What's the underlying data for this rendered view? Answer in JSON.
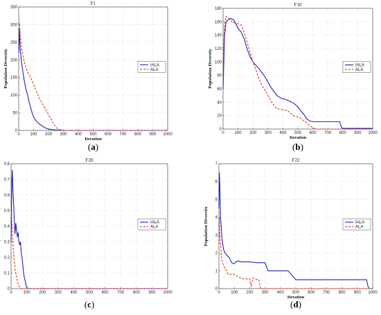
{
  "chart_data": [
    {
      "type": "line",
      "title": "F1",
      "xlabel": "Iteration",
      "ylabel": "Population Diversity",
      "xlim": [
        0,
        1000
      ],
      "ylim": [
        0,
        350
      ],
      "xticks": [
        0,
        100,
        200,
        300,
        400,
        500,
        600,
        700,
        800,
        900,
        1000
      ],
      "yticks": [
        0,
        50,
        100,
        150,
        200,
        250,
        300,
        350
      ],
      "grid": true,
      "legend_position": "center-right",
      "panel_label": "a",
      "series": [
        {
          "name": "IALA",
          "color": "#1f1fbf",
          "dash": "solid",
          "x": [
            0,
            5,
            10,
            20,
            30,
            40,
            50,
            60,
            70,
            80,
            90,
            100,
            120,
            140,
            160,
            180,
            200,
            230,
            260,
            300,
            1000
          ],
          "y": [
            220,
            290,
            230,
            190,
            160,
            135,
            115,
            100,
            80,
            65,
            50,
            38,
            25,
            18,
            12,
            7,
            4,
            2,
            1,
            0,
            0
          ]
        },
        {
          "name": "ALA",
          "color": "#e03020",
          "dash": "dashed",
          "x": [
            0,
            5,
            10,
            20,
            40,
            60,
            80,
            100,
            120,
            140,
            160,
            180,
            200,
            220,
            240,
            260,
            280,
            300,
            1000
          ],
          "y": [
            300,
            305,
            270,
            230,
            190,
            165,
            150,
            130,
            110,
            90,
            75,
            60,
            45,
            30,
            15,
            5,
            2,
            0,
            0
          ]
        }
      ]
    },
    {
      "type": "line",
      "title": "F10",
      "xlabel": "Iteration",
      "ylabel": "Population Diversity",
      "xlim": [
        0,
        1000
      ],
      "ylim": [
        0,
        180
      ],
      "xticks": [
        0,
        100,
        200,
        300,
        400,
        500,
        600,
        700,
        800,
        900,
        1000
      ],
      "yticks": [
        0,
        20,
        40,
        60,
        80,
        100,
        120,
        140,
        160,
        180
      ],
      "grid": true,
      "legend_position": "center-right",
      "panel_label": "b",
      "series": [
        {
          "name": "IALA",
          "color": "#1f1fbf",
          "dash": "solid",
          "x": [
            0,
            10,
            20,
            30,
            50,
            70,
            90,
            100,
            120,
            140,
            160,
            180,
            200,
            220,
            240,
            260,
            280,
            300,
            320,
            340,
            360,
            380,
            400,
            420,
            440,
            460,
            480,
            500,
            520,
            540,
            560,
            580,
            600,
            700,
            780,
            790,
            800,
            1000
          ],
          "y": [
            60,
            140,
            160,
            162,
            165,
            163,
            155,
            150,
            145,
            135,
            120,
            108,
            100,
            95,
            90,
            84,
            78,
            70,
            62,
            56,
            50,
            47,
            45,
            44,
            42,
            40,
            37,
            33,
            27,
            22,
            15,
            12,
            11,
            11,
            11,
            3,
            1,
            1
          ]
        },
        {
          "name": "ALA",
          "color": "#e03020",
          "dash": "dashed",
          "x": [
            0,
            10,
            20,
            40,
            60,
            80,
            100,
            120,
            140,
            160,
            180,
            200,
            220,
            240,
            260,
            280,
            300,
            320,
            340,
            360,
            380,
            400,
            420,
            440,
            460,
            480,
            500,
            520,
            540,
            560,
            580,
            600,
            620,
            1000
          ],
          "y": [
            100,
            155,
            168,
            165,
            160,
            158,
            157,
            155,
            145,
            130,
            115,
            100,
            88,
            75,
            65,
            58,
            50,
            42,
            35,
            30,
            30,
            29,
            28,
            26,
            22,
            19,
            18,
            16,
            12,
            9,
            5,
            2,
            0,
            0
          ]
        }
      ]
    },
    {
      "type": "line",
      "title": "F20",
      "xlabel": "",
      "ylabel": "Population Diversity",
      "xlim": [
        0,
        1000
      ],
      "ylim": [
        0,
        0.8
      ],
      "xticks": [
        0,
        100,
        200,
        300,
        400,
        500,
        600,
        700,
        800,
        900,
        1000
      ],
      "yticks": [
        0,
        0.1,
        0.2,
        0.3,
        0.4,
        0.5,
        0.6,
        0.7,
        0.8
      ],
      "grid": true,
      "legend_position": "center-right",
      "panel_label": "c",
      "series": [
        {
          "name": "IALA",
          "color": "#1f1fbf",
          "dash": "solid",
          "x": [
            0,
            5,
            8,
            12,
            16,
            20,
            25,
            30,
            35,
            40,
            45,
            50,
            55,
            60,
            65,
            70,
            75,
            80,
            85,
            90,
            95,
            100,
            110,
            1000
          ],
          "y": [
            0.3,
            0.7,
            0.76,
            0.62,
            0.55,
            0.45,
            0.35,
            0.42,
            0.38,
            0.33,
            0.36,
            0.3,
            0.28,
            0.3,
            0.22,
            0.2,
            0.15,
            0.1,
            0.07,
            0.05,
            0.02,
            0.01,
            0,
            0
          ]
        },
        {
          "name": "ALA",
          "color": "#e03020",
          "dash": "dashed",
          "x": [
            0,
            3,
            6,
            10,
            15,
            20,
            25,
            30,
            35,
            40,
            45,
            50,
            55,
            60,
            70,
            1000
          ],
          "y": [
            0.45,
            0.5,
            0.4,
            0.32,
            0.25,
            0.18,
            0.13,
            0.1,
            0.07,
            0.05,
            0.03,
            0.02,
            0.01,
            0.005,
            0,
            0
          ]
        }
      ]
    },
    {
      "type": "line",
      "title": "F22",
      "xlabel": "Iteration",
      "ylabel": "Population Diversity",
      "xlim": [
        0,
        1000
      ],
      "ylim": [
        0,
        7
      ],
      "xticks": [
        0,
        100,
        200,
        300,
        400,
        500,
        600,
        700,
        800,
        900,
        1000
      ],
      "yticks": [
        0,
        1,
        2,
        3,
        4,
        5,
        6,
        7
      ],
      "grid": true,
      "legend_position": "center-right",
      "panel_label": "d",
      "series": [
        {
          "name": "IALA",
          "color": "#1f1fbf",
          "dash": "solid",
          "x": [
            0,
            3,
            6,
            10,
            15,
            20,
            30,
            40,
            50,
            60,
            70,
            80,
            90,
            100,
            110,
            120,
            150,
            200,
            250,
            300,
            320,
            350,
            400,
            450,
            500,
            550,
            600,
            700,
            800,
            900,
            960,
            970,
            980,
            1000
          ],
          "y": [
            4.5,
            6.5,
            5.8,
            4.0,
            3.5,
            2.8,
            2.2,
            2.0,
            1.9,
            1.8,
            1.7,
            1.5,
            1.4,
            1.4,
            1.5,
            1.55,
            1.5,
            1.5,
            1.45,
            1.45,
            1.0,
            1.0,
            1.0,
            1.0,
            0.5,
            0.5,
            0.5,
            0.5,
            0.5,
            0.5,
            0.5,
            0.1,
            0,
            0
          ]
        },
        {
          "name": "ALA",
          "color": "#e03020",
          "dash": "dashed",
          "x": [
            0,
            3,
            6,
            10,
            15,
            20,
            30,
            40,
            50,
            60,
            80,
            100,
            120,
            150,
            180,
            200,
            210,
            220,
            250,
            260,
            270,
            1000
          ],
          "y": [
            2.5,
            4.0,
            3.0,
            2.5,
            2.0,
            1.6,
            1.3,
            1.1,
            1.0,
            0.8,
            0.8,
            0.8,
            0.7,
            0.55,
            0.55,
            0.55,
            0.1,
            0.6,
            0.5,
            0.5,
            0,
            0
          ]
        }
      ]
    }
  ]
}
